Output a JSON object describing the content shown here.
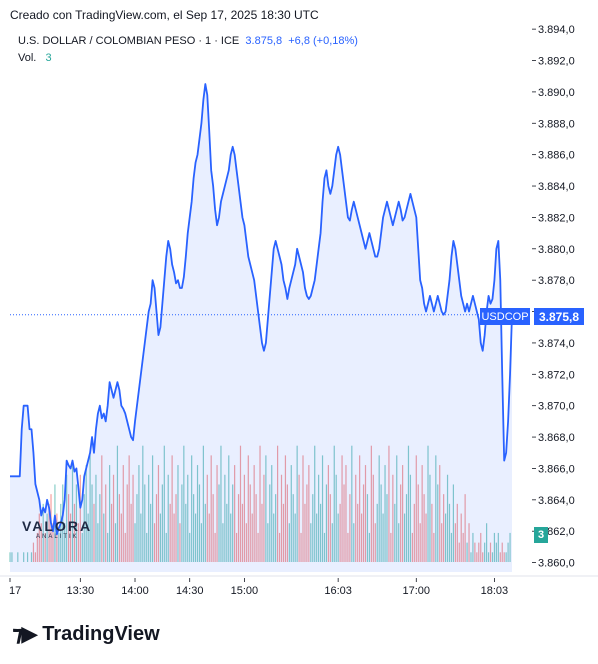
{
  "header": {
    "credit": "Creado con TradingView.com, el Sep 17, 2025 18:30 UTC"
  },
  "legend": {
    "symbol": "U.S. DOLLAR / COLOMBIAN PESO · 1 · ICE",
    "last": "3.875,8",
    "change": "+6,8 (+0,18%)",
    "vol_label": "Vol.",
    "vol_value": "3"
  },
  "badges": {
    "symbol": "USDCOP",
    "price": "3.875,8",
    "volume": "3"
  },
  "footer": {
    "brand": "TradingView"
  },
  "watermark": {
    "name": "VALORA",
    "sub": "ANALITIK"
  },
  "colors": {
    "line": "#2962ff",
    "fill": "#2962ff",
    "vol_up": "#26a69a",
    "vol_down": "#ef5350",
    "badge": "#2962ff"
  },
  "chart_data": {
    "type": "area",
    "ylim": [
      3859.4,
      3894.2
    ],
    "yticks": [
      3860.0,
      3862.0,
      3864.0,
      3866.0,
      3868.0,
      3870.0,
      3872.0,
      3874.0,
      3876.0,
      3878.0,
      3880.0,
      3882.0,
      3884.0,
      3886.0,
      3888.0,
      3890.0,
      3892.0,
      3894.0
    ],
    "ytick_labels": [
      "3.860,0",
      "3.862,0",
      "3.864,0",
      "3.866,0",
      "3.868,0",
      "3.870,0",
      "3.872,0",
      "3.874,0",
      "3.876,0",
      "3.878,0",
      "3.880,0",
      "3.882,0",
      "3.884,0",
      "3.886,0",
      "3.888,0",
      "3.890,0",
      "3.892,0",
      "3.894,0"
    ],
    "xticks": [
      "17",
      "13:30",
      "14:00",
      "14:30",
      "15:00",
      "16:03",
      "17:00",
      "18:03"
    ],
    "xtick_index": [
      0,
      36,
      64,
      92,
      120,
      168,
      208,
      248
    ],
    "last_price": 3875.8,
    "price": [
      3865.5,
      3865.5,
      3865.5,
      3865.5,
      3865.5,
      3865.5,
      3868.5,
      3870.0,
      3870.0,
      3870.0,
      3868.5,
      3868.5,
      3867.0,
      3865.0,
      3864.5,
      3864.0,
      3863.0,
      3863.5,
      3863.2,
      3864.0,
      3863.5,
      3862.5,
      3862.0,
      3863.0,
      3861.8,
      3862.2,
      3862.5,
      3863.0,
      3864.0,
      3866.5,
      3866.2,
      3866.0,
      3866.5,
      3865.8,
      3866.0,
      3864.8,
      3863.5,
      3864.0,
      3865.5,
      3866.0,
      3866.5,
      3867.0,
      3868.0,
      3867.0,
      3868.5,
      3869.5,
      3870.0,
      3869.2,
      3869.5,
      3869.0,
      3870.0,
      3871.5,
      3871.0,
      3870.5,
      3871.0,
      3871.5,
      3871.0,
      3870.0,
      3869.8,
      3869.5,
      3869.0,
      3868.5,
      3868.0,
      3867.8,
      3869.0,
      3870.0,
      3871.0,
      3872.0,
      3873.0,
      3874.0,
      3875.0,
      3876.0,
      3876.5,
      3878.0,
      3877.5,
      3876.0,
      3874.5,
      3875.0,
      3876.5,
      3878.0,
      3879.5,
      3880.5,
      3880.0,
      3879.0,
      3878.5,
      3877.8,
      3878.0,
      3877.5,
      3877.5,
      3878.2,
      3879.5,
      3881.0,
      3882.0,
      3883.0,
      3884.5,
      3885.5,
      3886.0,
      3887.0,
      3888.0,
      3889.5,
      3890.5,
      3889.8,
      3887.5,
      3885.0,
      3884.0,
      3882.5,
      3881.5,
      3882.0,
      3883.0,
      3883.5,
      3884.0,
      3884.5,
      3885.0,
      3886.0,
      3886.5,
      3886.0,
      3885.0,
      3884.0,
      3883.0,
      3882.0,
      3881.5,
      3880.5,
      3879.5,
      3879.0,
      3878.5,
      3878.0,
      3877.0,
      3876.0,
      3875.0,
      3874.0,
      3873.5,
      3874.0,
      3875.5,
      3877.0,
      3878.5,
      3880.0,
      3880.5,
      3880.0,
      3879.5,
      3879.0,
      3878.0,
      3877.5,
      3876.8,
      3877.5,
      3878.0,
      3878.5,
      3879.0,
      3880.0,
      3879.5,
      3879.0,
      3878.5,
      3877.5,
      3877.0,
      3876.8,
      3877.0,
      3877.5,
      3878.0,
      3879.0,
      3880.0,
      3881.0,
      3883.0,
      3884.5,
      3885.0,
      3884.0,
      3883.5,
      3884.0,
      3885.0,
      3886.0,
      3886.5,
      3886.0,
      3885.0,
      3884.0,
      3883.0,
      3882.0,
      3881.8,
      3882.5,
      3883.0,
      3882.5,
      3882.0,
      3881.5,
      3881.0,
      3880.5,
      3880.0,
      3880.5,
      3881.0,
      3880.5,
      3880.0,
      3879.5,
      3879.5,
      3880.0,
      3881.0,
      3882.0,
      3882.5,
      3883.0,
      3882.5,
      3882.0,
      3881.5,
      3882.0,
      3882.5,
      3883.0,
      3882.5,
      3881.8,
      3882.0,
      3882.5,
      3883.0,
      3883.5,
      3883.0,
      3882.5,
      3882.0,
      3880.0,
      3878.0,
      3877.5,
      3876.5,
      3876.0,
      3876.5,
      3877.0,
      3876.5,
      3876.0,
      3876.5,
      3877.0,
      3876.5,
      3876.0,
      3875.8,
      3876.0,
      3877.0,
      3878.0,
      3879.5,
      3880.5,
      3880.0,
      3879.0,
      3878.0,
      3877.0,
      3876.5,
      3876.0,
      3876.5,
      3876.0,
      3876.5,
      3877.0,
      3876.5,
      3876.0,
      3875.5,
      3874.0,
      3873.5,
      3874.5,
      3876.0,
      3877.0,
      3876.5,
      3876.8,
      3878.0,
      3880.0,
      3880.5,
      3878.0,
      3872.0,
      3866.5,
      3867.0,
      3869.0,
      3872.0,
      3875.8
    ],
    "volume": [
      1,
      1,
      0,
      0,
      1,
      0,
      0,
      1,
      0,
      1,
      0,
      1,
      2,
      1,
      3,
      5,
      4,
      6,
      3,
      5,
      6,
      7,
      4,
      8,
      5,
      3,
      6,
      8,
      4,
      9,
      7,
      5,
      10,
      6,
      8,
      4,
      9,
      3,
      7,
      10,
      5,
      11,
      8,
      6,
      9,
      4,
      7,
      11,
      5,
      8,
      3,
      10,
      6,
      9,
      4,
      12,
      7,
      5,
      10,
      3,
      8,
      11,
      6,
      9,
      4,
      7,
      10,
      5,
      12,
      8,
      3,
      9,
      6,
      11,
      4,
      7,
      10,
      5,
      8,
      12,
      3,
      9,
      6,
      11,
      5,
      7,
      10,
      4,
      8,
      12,
      6,
      9,
      3,
      11,
      7,
      5,
      10,
      8,
      4,
      12,
      6,
      9,
      5,
      11,
      7,
      3,
      10,
      8,
      12,
      4,
      9,
      6,
      11,
      5,
      8,
      10,
      3,
      7,
      12,
      6,
      9,
      4,
      11,
      8,
      5,
      10,
      7,
      3,
      12,
      6,
      9,
      11,
      4,
      8,
      10,
      5,
      7,
      12,
      3,
      9,
      6,
      11,
      8,
      4,
      10,
      7,
      5,
      12,
      9,
      3,
      11,
      6,
      8,
      10,
      4,
      7,
      12,
      5,
      9,
      6,
      11,
      3,
      8,
      10,
      7,
      4,
      12,
      9,
      5,
      6,
      11,
      8,
      10,
      3,
      7,
      12,
      4,
      9,
      6,
      11,
      5,
      8,
      10,
      7,
      3,
      12,
      9,
      4,
      6,
      11,
      8,
      5,
      10,
      7,
      12,
      3,
      9,
      6,
      11,
      4,
      8,
      10,
      5,
      7,
      12,
      9,
      3,
      6,
      11,
      8,
      4,
      10,
      7,
      5,
      12,
      9,
      6,
      3,
      11,
      8,
      10,
      4,
      7,
      5,
      9,
      6,
      3,
      8,
      4,
      6,
      2,
      5,
      3,
      7,
      2,
      4,
      1,
      3,
      2,
      1,
      2,
      3,
      1,
      2,
      4,
      1,
      2,
      1,
      3,
      2,
      3,
      1,
      2,
      1,
      1,
      2,
      3
    ],
    "volume_max": 13
  }
}
